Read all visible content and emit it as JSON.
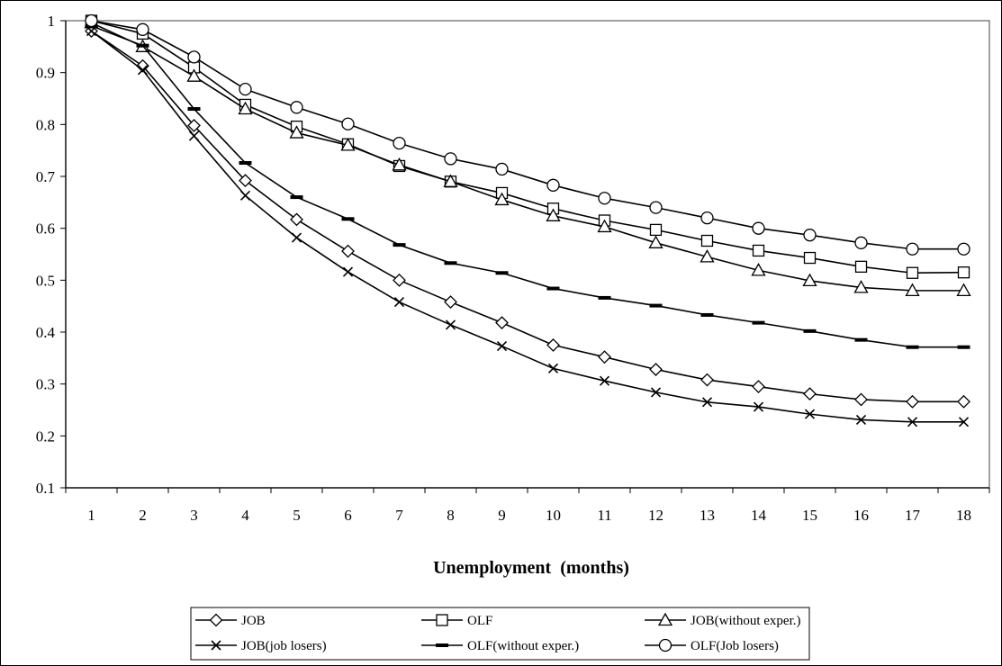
{
  "chart_data": {
    "type": "line",
    "title": "",
    "xlabel": "Unemployment  (months)",
    "ylabel": "",
    "ylim": [
      0.1,
      1
    ],
    "yticks": [
      "0.1",
      "0.2",
      "0.3",
      "0.4",
      "0.5",
      "0.6",
      "0.7",
      "0.8",
      "0.9",
      "1"
    ],
    "categories": [
      "1",
      "2",
      "3",
      "4",
      "5",
      "6",
      "7",
      "8",
      "9",
      "10",
      "11",
      "12",
      "13",
      "14",
      "15",
      "16",
      "17",
      "18"
    ],
    "grid": false,
    "legend_position": "bottom",
    "series": [
      {
        "name": "JOB",
        "marker": "diamond",
        "values": [
          0.98,
          0.913,
          0.798,
          0.692,
          0.617,
          0.556,
          0.5,
          0.458,
          0.418,
          0.375,
          0.352,
          0.328,
          0.308,
          0.295,
          0.281,
          0.27,
          0.266,
          0.266
        ]
      },
      {
        "name": "OLF",
        "marker": "square",
        "values": [
          1.0,
          0.975,
          0.91,
          0.838,
          0.796,
          0.762,
          0.72,
          0.69,
          0.668,
          0.638,
          0.615,
          0.597,
          0.576,
          0.557,
          0.543,
          0.526,
          0.514,
          0.515
        ]
      },
      {
        "name": "JOB(without exper.)",
        "marker": "triangle",
        "values": [
          0.996,
          0.95,
          0.893,
          0.83,
          0.784,
          0.76,
          0.722,
          0.69,
          0.655,
          0.624,
          0.603,
          0.572,
          0.545,
          0.519,
          0.499,
          0.486,
          0.48,
          0.48
        ]
      },
      {
        "name": "JOB(job losers)",
        "marker": "x",
        "values": [
          0.98,
          0.905,
          0.778,
          0.663,
          0.582,
          0.516,
          0.458,
          0.414,
          0.373,
          0.33,
          0.306,
          0.284,
          0.265,
          0.256,
          0.242,
          0.231,
          0.227,
          0.227
        ]
      },
      {
        "name": "OLF(without exper.)",
        "marker": "dash",
        "values": [
          0.99,
          0.952,
          0.83,
          0.726,
          0.66,
          0.618,
          0.568,
          0.533,
          0.514,
          0.484,
          0.466,
          0.451,
          0.433,
          0.418,
          0.402,
          0.385,
          0.371,
          0.371
        ]
      },
      {
        "name": "OLF(Job losers)",
        "marker": "circle",
        "values": [
          1.0,
          0.983,
          0.93,
          0.868,
          0.833,
          0.801,
          0.764,
          0.734,
          0.714,
          0.683,
          0.658,
          0.64,
          0.62,
          0.6,
          0.587,
          0.572,
          0.56,
          0.56
        ]
      }
    ]
  }
}
